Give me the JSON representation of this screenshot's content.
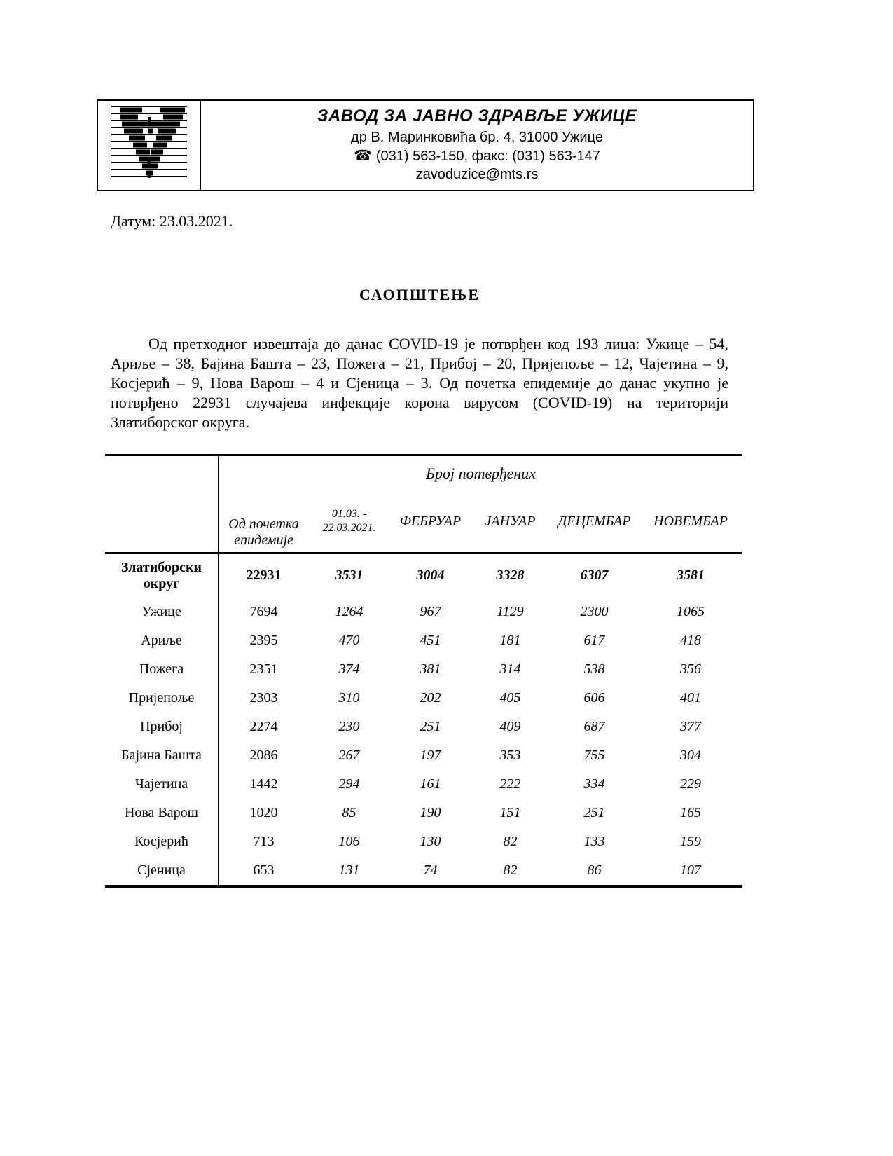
{
  "page": {
    "background": "#ffffff",
    "text_color": "#000000"
  },
  "letterhead": {
    "logo": "striped-v-health-institute-logo",
    "institute_name": "ЗАВОД ЗА ЈАВНО ЗДРАВЉЕ УЖИЦЕ",
    "address_line": "др В. Маринковића бр. 4, 31000 Ужице",
    "phone_icon": "☎",
    "phone_line": "(031) 563-150, факс: (031) 563-147",
    "email": "zavoduzice@mts.rs"
  },
  "date_label": "Датум: 23.03.2021.",
  "title": "САОПШТЕЊЕ",
  "paragraph": "Од претходног извештаја до данас COVID-19 је потврђен код 193 лица: Ужице – 54, Ариље – 38, Бајина Башта – 23, Пожега – 21, Прибој – 20, Пријепоље – 12, Чајетина – 9, Косјерић – 9, Нова Варош – 4 и Сјеница – 3. Од почетка епидемије до данас укупно је потврђено 22931 случајева инфекције корона вирусом (COVID-19) на територији Златиборског округа.",
  "table": {
    "group_header": "Број потврђених",
    "corner_label": "",
    "columns": [
      "Од почетка епидемије",
      "01.03. - 22.03.2021.",
      "ФЕБРУАР",
      "ЈАНУАР",
      "ДЕЦЕМБАР",
      "НОВЕМБАР"
    ],
    "rows": [
      {
        "name": "Златиборски округ",
        "bold": true,
        "values": [
          "22931",
          "3531",
          "3004",
          "3328",
          "6307",
          "3581"
        ]
      },
      {
        "name": "Ужице",
        "bold": false,
        "values": [
          "7694",
          "1264",
          "967",
          "1129",
          "2300",
          "1065"
        ]
      },
      {
        "name": "Ариље",
        "bold": false,
        "values": [
          "2395",
          "470",
          "451",
          "181",
          "617",
          "418"
        ]
      },
      {
        "name": "Пожега",
        "bold": false,
        "values": [
          "2351",
          "374",
          "381",
          "314",
          "538",
          "356"
        ]
      },
      {
        "name": "Пријепоље",
        "bold": false,
        "values": [
          "2303",
          "310",
          "202",
          "405",
          "606",
          "401"
        ]
      },
      {
        "name": "Прибој",
        "bold": false,
        "values": [
          "2274",
          "230",
          "251",
          "409",
          "687",
          "377"
        ]
      },
      {
        "name": "Бајина Башта",
        "bold": false,
        "values": [
          "2086",
          "267",
          "197",
          "353",
          "755",
          "304"
        ]
      },
      {
        "name": "Чајетина",
        "bold": false,
        "values": [
          "1442",
          "294",
          "161",
          "222",
          "334",
          "229"
        ]
      },
      {
        "name": "Нова Варош",
        "bold": false,
        "values": [
          "1020",
          "85",
          "190",
          "151",
          "251",
          "165"
        ]
      },
      {
        "name": "Косјерић",
        "bold": false,
        "values": [
          "713",
          "106",
          "130",
          "82",
          "133",
          "159"
        ]
      },
      {
        "name": "Сјеница",
        "bold": false,
        "values": [
          "653",
          "131",
          "74",
          "82",
          "86",
          "107"
        ]
      }
    ]
  }
}
